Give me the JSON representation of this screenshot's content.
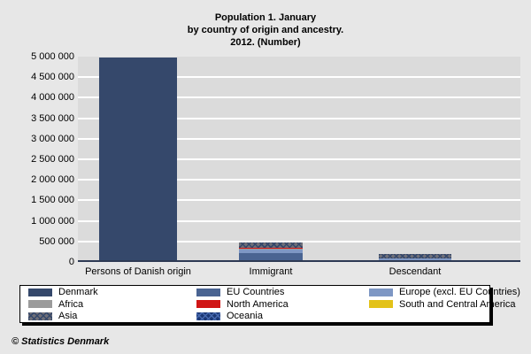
{
  "title": {
    "line1": "Population 1. January",
    "line2": "by country of origin and ancestry.",
    "line3": "2012. (Number)"
  },
  "footer": {
    "copyright": "© Statistics Denmark"
  },
  "colors": {
    "page_bg": "#E7E7E7",
    "plot_bg": "#DBDBDB",
    "gridline": "#FFFFFF",
    "axis_line": "#2E3A54",
    "legend_bg": "#FFFFFF",
    "legend_border": "#000000"
  },
  "chart_data": {
    "type": "bar",
    "stacked": true,
    "title": "Population 1. January by country of origin and ancestry. 2012. (Number)",
    "xlabel": "",
    "ylabel": "",
    "grid": true,
    "legend_position": "bottom",
    "ylim": [
      0,
      5000000
    ],
    "ytick_step": 500000,
    "ytick_labels": [
      "0",
      "500 000",
      "1 000 000",
      "1 500 000",
      "2 000 000",
      "2 500 000",
      "3 000 000",
      "3 500 000",
      "4 000 000",
      "4 500 000",
      "5 000 000"
    ],
    "categories": [
      "Persons of Danish origin",
      "Immigrant",
      "Descendant"
    ],
    "series": [
      {
        "name": "Denmark",
        "color": "#35486B",
        "pattern": "solid",
        "values": [
          4970000,
          0,
          0
        ]
      },
      {
        "name": "EU Countries",
        "color": "#4A6492",
        "pattern": "solid",
        "values": [
          0,
          215000,
          40000
        ]
      },
      {
        "name": "Europe (excl. EU Countries)",
        "color": "#7E97C4",
        "pattern": "solid",
        "values": [
          0,
          95000,
          40000
        ]
      },
      {
        "name": "Africa",
        "color": "#9B9B9B",
        "pattern": "solid",
        "values": [
          0,
          8000,
          3000
        ]
      },
      {
        "name": "North America",
        "color": "#D01616",
        "pattern": "solid",
        "values": [
          0,
          25000,
          1000
        ]
      },
      {
        "name": "South and Central America",
        "color": "#E3C219",
        "pattern": "solid",
        "values": [
          0,
          5000,
          1000
        ]
      },
      {
        "name": "Asia",
        "color": "#6F6F78",
        "pattern": "cross",
        "pattern_color": "#35486B",
        "values": [
          0,
          130000,
          105000
        ]
      },
      {
        "name": "Oceania",
        "color": "#1C3875",
        "pattern": "cross",
        "pattern_color": "#4668AE",
        "values": [
          0,
          2000,
          1000
        ]
      }
    ]
  }
}
